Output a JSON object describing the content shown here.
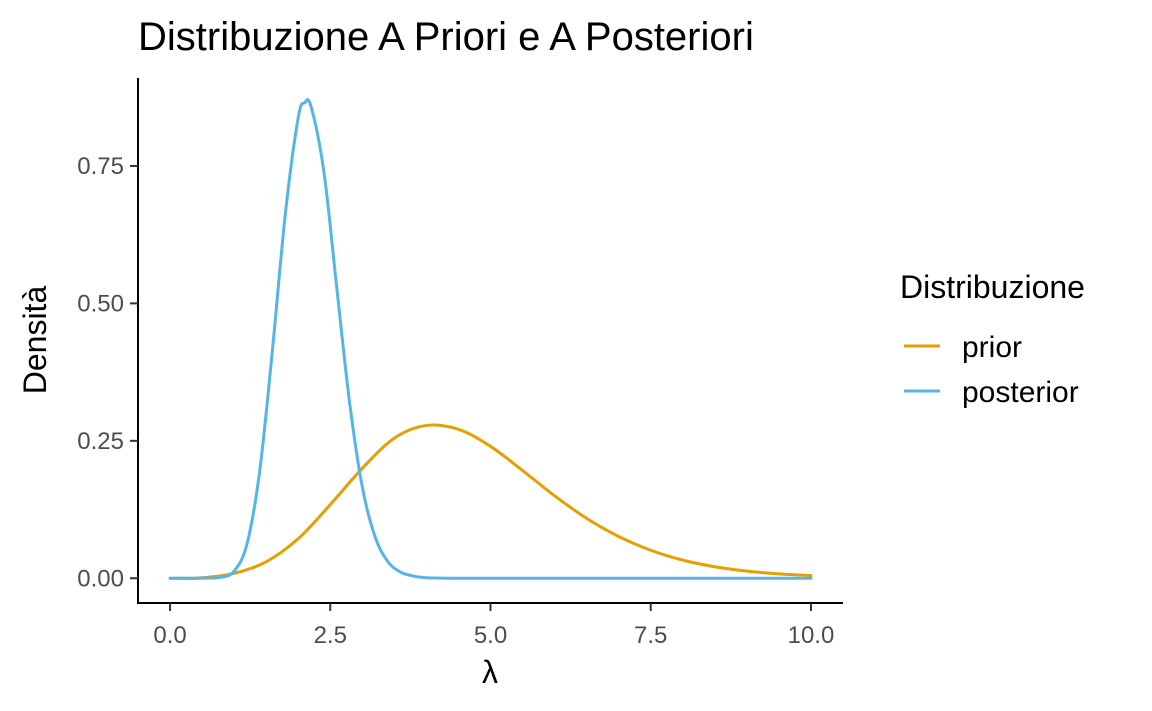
{
  "chart_data": {
    "type": "line",
    "title": "Distribuzione A Priori e A Posteriori",
    "xlabel": "λ",
    "ylabel": "Densità",
    "xlim": [
      -0.5,
      10.5
    ],
    "ylim": [
      -0.045,
      0.91
    ],
    "x_ticks": [
      0,
      2.5,
      5,
      7.5,
      10
    ],
    "x_tick_labels": [
      "0.0",
      "2.5",
      "5.0",
      "7.5",
      "10.0"
    ],
    "y_ticks": [
      0,
      0.25,
      0.5,
      0.75
    ],
    "y_tick_labels": [
      "0.00",
      "0.25",
      "0.50",
      "0.75"
    ],
    "grid": false,
    "legend": {
      "title": "Distribuzione",
      "position": "right",
      "entries": [
        {
          "label": "prior",
          "color": "#E69F00"
        },
        {
          "label": "posterior",
          "color": "#56B4E9"
        }
      ]
    },
    "series": [
      {
        "name": "prior",
        "color": "#E69F00",
        "x": [
          0.0,
          0.5,
          1.0,
          1.5,
          2.0,
          2.5,
          3.0,
          3.5,
          4.0,
          4.5,
          5.0,
          5.5,
          6.0,
          6.5,
          7.0,
          7.5,
          8.0,
          8.5,
          9.0,
          9.5,
          10.0
        ],
        "y": [
          0.0,
          0.001,
          0.009,
          0.03,
          0.072,
          0.134,
          0.2,
          0.255,
          0.278,
          0.271,
          0.24,
          0.196,
          0.15,
          0.109,
          0.076,
          0.051,
          0.033,
          0.021,
          0.013,
          0.008,
          0.005
        ]
      },
      {
        "name": "posterior",
        "color": "#56B4E9",
        "x": [
          0.0,
          0.5,
          0.8,
          1.0,
          1.2,
          1.4,
          1.6,
          1.8,
          2.0,
          2.1,
          2.2,
          2.4,
          2.6,
          2.8,
          3.0,
          3.2,
          3.4,
          3.6,
          3.8,
          4.0,
          4.5,
          5.0,
          6.0,
          8.0,
          10.0
        ],
        "y": [
          0.0,
          0.0,
          0.002,
          0.013,
          0.062,
          0.196,
          0.418,
          0.664,
          0.838,
          0.865,
          0.858,
          0.74,
          0.53,
          0.321,
          0.166,
          0.075,
          0.03,
          0.011,
          0.004,
          0.001,
          0.0,
          0.0,
          0.0,
          0.0,
          0.0
        ]
      }
    ]
  }
}
